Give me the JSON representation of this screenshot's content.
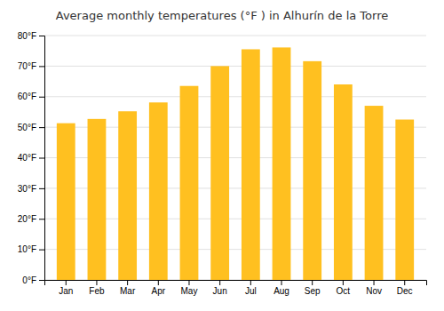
{
  "chart_data": {
    "type": "bar",
    "title": "Average monthly temperatures (°F ) in Alhurín de la Torre",
    "categories": [
      "Jan",
      "Feb",
      "Mar",
      "Apr",
      "May",
      "Jun",
      "Jul",
      "Aug",
      "Sep",
      "Oct",
      "Nov",
      "Dec"
    ],
    "values": [
      51.3,
      52.7,
      55.2,
      58.1,
      63.5,
      70.0,
      75.5,
      76.1,
      71.6,
      64.0,
      57.0,
      52.5
    ],
    "color": "#FFC020",
    "ylim": [
      0,
      80
    ],
    "yticks": [
      {
        "value": 0,
        "label": "0°F"
      },
      {
        "value": 10,
        "label": "10°F"
      },
      {
        "value": 20,
        "label": "20°F"
      },
      {
        "value": 30,
        "label": "30°F"
      },
      {
        "value": 40,
        "label": "40°F"
      },
      {
        "value": 50,
        "label": "50°F"
      },
      {
        "value": 60,
        "label": "60°F"
      },
      {
        "value": 70,
        "label": "70°F"
      },
      {
        "value": 80,
        "label": "80°F"
      }
    ],
    "grid": true
  }
}
